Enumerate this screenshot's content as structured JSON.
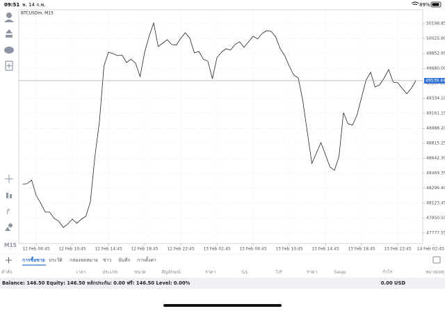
{
  "status_bar": {
    "time": "09:51",
    "date": "พ. 14 ก.พ.",
    "battery": "89%"
  },
  "chart_data": {
    "type": "line",
    "title": "BTCUSDm, M15",
    "color": "#222222",
    "categories": [
      null,
      null,
      null,
      "12 Feb 06:45",
      null,
      null,
      null,
      null,
      null,
      null,
      null,
      "12 Feb 10:45",
      null,
      null,
      null,
      null,
      null,
      null,
      null,
      "12 Feb 14:45",
      null,
      null,
      null,
      null,
      null,
      null,
      null,
      "12 Feb 18:45",
      null,
      null,
      null,
      null,
      null,
      null,
      null,
      "12 Feb 22:45",
      null,
      null,
      null,
      null,
      null,
      null,
      null,
      "13 Feb 02:45",
      null,
      null,
      null,
      null,
      null,
      null,
      null,
      "13 Feb 06:45",
      null,
      null,
      null,
      null,
      null,
      null,
      null,
      "13 Feb 10:45",
      null,
      null,
      null,
      null,
      null,
      null,
      null,
      "13 Feb 14:45",
      null,
      null,
      null,
      null,
      null,
      null,
      null,
      "13 Feb 18:45",
      null,
      null,
      null,
      null,
      null,
      null,
      null,
      "13 Feb 22:45",
      null,
      null,
      null,
      null,
      null,
      null,
      null,
      "14 Feb 02:45"
    ],
    "values": [
      48341,
      48349,
      48389,
      48212,
      48124,
      48019,
      48019,
      47946,
      47914,
      47842,
      47882,
      47938,
      47890,
      47938,
      47971,
      48140,
      48662,
      49065,
      49708,
      49869,
      49853,
      49829,
      49837,
      49748,
      49789,
      49740,
      49587,
      49869,
      50054,
      50207,
      49934,
      49974,
      50014,
      49958,
      49950,
      50030,
      50094,
      50030,
      49861,
      49877,
      49789,
      49764,
      49563,
      49805,
      49869,
      49909,
      49893,
      49958,
      49990,
      49925,
      49990,
      50054,
      50022,
      50086,
      50118,
      50110,
      50046,
      49909,
      49829,
      49708,
      49604,
      49571,
      49306,
      48944,
      48582,
      48702,
      48823,
      48686,
      48542,
      48502,
      48662,
      49169,
      49041,
      49025,
      49145,
      49346,
      49547,
      49636,
      49467,
      49491,
      49571,
      49668,
      49523,
      49515,
      49451,
      49387,
      49451,
      49539,
      null,
      null,
      null,
      null
    ],
    "ylim": [
      47656,
      50360
    ],
    "yticks": [
      50198.85,
      {
        "value": 50025.9,
        "label": "50025.90"
      },
      49852.95,
      {
        "value": 49680,
        "label": "49680.00"
      },
      49507.05,
      {
        "value": 49334.1,
        "label": "49334.10"
      },
      49161.15,
      {
        "value": 48988.2,
        "label": "48988.20"
      },
      48815.25,
      {
        "value": 48642.3,
        "label": "48642.30"
      },
      48469.35,
      {
        "value": 48296.4,
        "label": "48296.40"
      },
      48123.45,
      {
        "value": 47950.5,
        "label": "47950.50"
      },
      47777.55
    ],
    "price_line": 49539.44,
    "price_line_color": "#2f6fd6",
    "grid": true
  },
  "timeframe": "M15",
  "tabs": [
    "การซื้อขาย",
    "ประวัติ",
    "กล่องจดหมาย",
    "ข่าว",
    "บันทึก",
    "การตั้งค่า"
  ],
  "active_tab": 0,
  "table": {
    "columns": [
      "คำสั่ง",
      "เวลา",
      "ประเภท",
      "ขนาด",
      "สัญลักษณ์",
      "ราคา",
      "S/L",
      "T/P",
      "ราคา",
      "Swap",
      "กำไร",
      "หมายเหตุ"
    ]
  },
  "account": {
    "summary": "Balance: 146.50  Equity: 146.50  หลักประกัน: 0.00  ฟรี: 146.50  Level: 0.00%",
    "profit": "0.00  USD"
  }
}
